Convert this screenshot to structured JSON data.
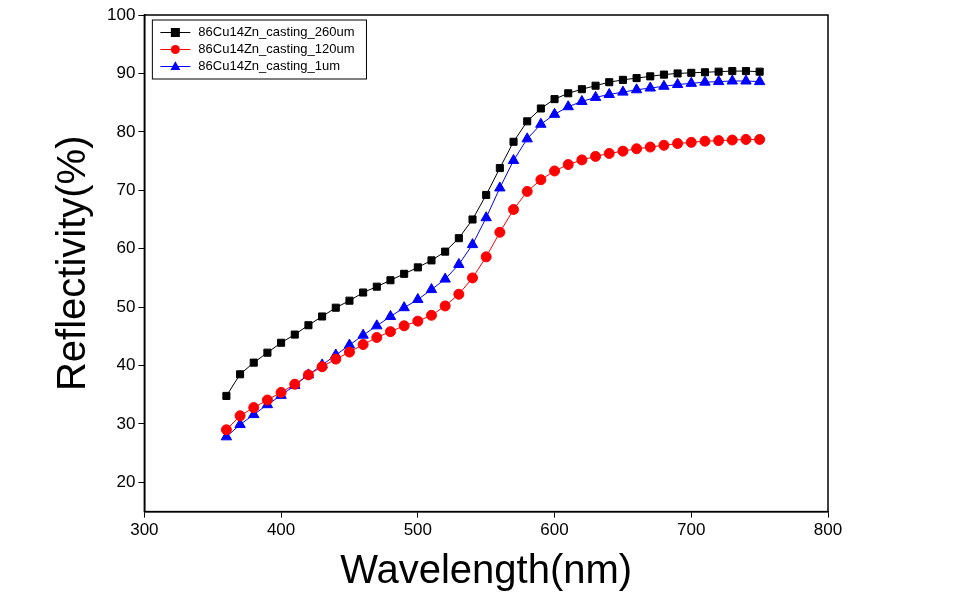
{
  "chart_data": {
    "type": "line",
    "x_label": "Wavelength(nm)",
    "y_label": "Reflectivity(%)",
    "x": [
      360,
      370,
      380,
      390,
      400,
      410,
      420,
      430,
      440,
      450,
      460,
      470,
      480,
      490,
      500,
      510,
      520,
      530,
      540,
      550,
      560,
      570,
      580,
      590,
      600,
      610,
      620,
      630,
      640,
      650,
      660,
      670,
      680,
      690,
      700,
      710,
      720,
      730,
      740,
      750
    ],
    "series": [
      {
        "name": "86Cu14Zn_casting_260um",
        "color": "#000000",
        "marker": "square",
        "line_style": "solid",
        "values": [
          34.8,
          38.5,
          40.5,
          42.2,
          43.9,
          45.3,
          46.9,
          48.4,
          49.9,
          51.1,
          52.5,
          53.5,
          54.6,
          55.7,
          56.8,
          58.0,
          59.5,
          61.8,
          65.0,
          69.2,
          73.8,
          78.3,
          81.8,
          84.0,
          85.6,
          86.6,
          87.3,
          87.9,
          88.5,
          88.9,
          89.2,
          89.5,
          89.8,
          90.0,
          90.1,
          90.2,
          90.3,
          90.4,
          90.4,
          90.3
        ]
      },
      {
        "name": "86Cu14Zn_casting_120um",
        "color": "#ff0000",
        "marker": "circle",
        "line_style": "solid",
        "values": [
          29.0,
          31.4,
          32.8,
          34.1,
          35.4,
          36.8,
          38.4,
          39.8,
          41.1,
          42.3,
          43.6,
          44.8,
          45.8,
          46.8,
          47.6,
          48.6,
          50.2,
          52.2,
          55.0,
          58.6,
          62.8,
          66.7,
          69.8,
          71.8,
          73.3,
          74.4,
          75.2,
          75.8,
          76.3,
          76.7,
          77.1,
          77.4,
          77.7,
          78.0,
          78.2,
          78.4,
          78.5,
          78.6,
          78.7,
          78.7
        ]
      },
      {
        "name": "86Cu14Zn_casting_1um",
        "color": "#0000ff",
        "marker": "triangle",
        "line_style": "solid",
        "values": [
          27.8,
          29.9,
          31.6,
          33.3,
          34.9,
          36.6,
          38.4,
          40.1,
          41.8,
          43.5,
          45.2,
          46.8,
          48.4,
          49.9,
          51.3,
          53.0,
          54.8,
          57.3,
          60.7,
          65.3,
          70.4,
          75.1,
          78.8,
          81.3,
          83.0,
          84.3,
          85.2,
          85.9,
          86.4,
          86.8,
          87.2,
          87.5,
          87.8,
          88.1,
          88.3,
          88.5,
          88.6,
          88.7,
          88.7,
          88.6
        ]
      }
    ],
    "xlim": [
      300,
      800
    ],
    "xticks": [
      300,
      400,
      500,
      600,
      700,
      800
    ],
    "ylim": [
      15,
      100
    ],
    "yticks": [
      20,
      30,
      40,
      50,
      60,
      70,
      80,
      90,
      100
    ],
    "grid": false,
    "legend": "upper left"
  }
}
